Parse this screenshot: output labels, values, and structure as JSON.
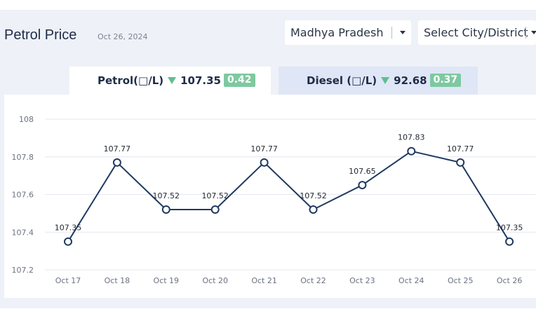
{
  "header": {
    "title": "Petrol Price",
    "date": "Oct 26, 2024"
  },
  "filters": {
    "state": "Madhya Pradesh",
    "city": "Select City/District"
  },
  "tabs": [
    {
      "label": "Petrol(□/L)",
      "price": "107.35",
      "change": "0.42",
      "trend": "down",
      "selected": true
    },
    {
      "label": "Diesel (□/L)",
      "price": "92.68",
      "change": "0.37",
      "trend": "down",
      "selected": false
    }
  ],
  "colors": {
    "line": "#1f3a60",
    "badge": "#7ec9a0",
    "down_arrow": "#5fbf8f",
    "grid": "#e4e7ee"
  },
  "chart_data": {
    "type": "line",
    "categories": [
      "Oct 17",
      "Oct 18",
      "Oct 19",
      "Oct 20",
      "Oct 21",
      "Oct 22",
      "Oct 23",
      "Oct 24",
      "Oct 25",
      "Oct 26"
    ],
    "values": [
      107.35,
      107.77,
      107.52,
      107.52,
      107.77,
      107.52,
      107.65,
      107.83,
      107.77,
      107.35
    ],
    "data_labels": [
      "107.35",
      "107.77",
      "107.52",
      "107.52",
      "107.77",
      "107.52",
      "107.65",
      "107.83",
      "107.77",
      "107.35"
    ],
    "ylim": [
      107.2,
      108
    ],
    "y_ticks": [
      "107.2",
      "107.4",
      "107.6",
      "107.8",
      "108"
    ],
    "grid": true,
    "xlabel": "",
    "ylabel": ""
  }
}
